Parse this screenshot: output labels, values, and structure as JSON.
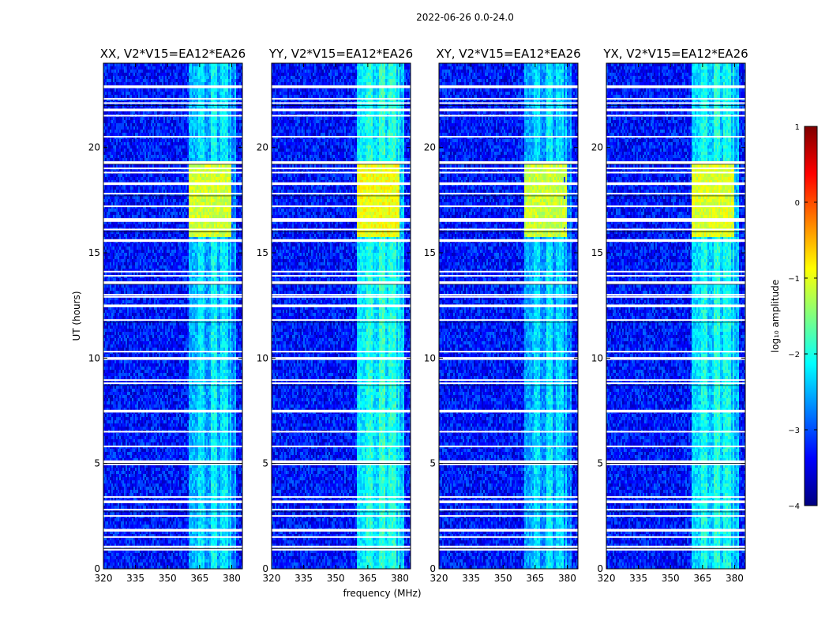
{
  "suptitle": "2022-06-26 0.0-24.0",
  "ylabel": "UT (hours)",
  "xlabel": "frequency (MHz)",
  "colorbar": {
    "label": "log₁₀ amplitude",
    "range": [
      -4,
      1
    ],
    "ticks": [
      {
        "value": 1,
        "label": "1"
      },
      {
        "value": 0,
        "label": "0"
      },
      {
        "value": -1,
        "label": "−1"
      },
      {
        "value": -2,
        "label": "−2"
      },
      {
        "value": -3,
        "label": "−3"
      },
      {
        "value": -4,
        "label": "−4"
      }
    ],
    "colormap": "jet"
  },
  "chart_data": {
    "type": "heatmap",
    "colormap": "jet",
    "value_label": "log10 amplitude",
    "vmin": -4,
    "vmax": 1,
    "xlim": [
      320,
      385
    ],
    "ylim": [
      0,
      24
    ],
    "x_ticks": [
      {
        "value": 320,
        "label": "320"
      },
      {
        "value": 335,
        "label": "335"
      },
      {
        "value": 350,
        "label": "350"
      },
      {
        "value": 365,
        "label": "365"
      },
      {
        "value": 380,
        "label": "380"
      }
    ],
    "y_ticks": [
      {
        "value": 0,
        "label": "0"
      },
      {
        "value": 5,
        "label": "5"
      },
      {
        "value": 10,
        "label": "10"
      },
      {
        "value": 15,
        "label": "15"
      },
      {
        "value": 20,
        "label": "20"
      }
    ],
    "background_level": -3.3,
    "rfi_bands": [
      {
        "start": 360,
        "end": 364,
        "level": -2.5
      },
      {
        "start": 364,
        "end": 367,
        "level": -2.2
      },
      {
        "start": 367,
        "end": 370,
        "level": -2.6
      },
      {
        "start": 370,
        "end": 373,
        "level": -2.1
      },
      {
        "start": 373,
        "end": 375,
        "level": -2.6
      },
      {
        "start": 375,
        "end": 378,
        "level": -2.2
      },
      {
        "start": 378,
        "end": 379,
        "level": -2.7
      },
      {
        "start": 379,
        "end": 380,
        "level": -2.3
      },
      {
        "start": 380,
        "end": 381,
        "level": -2.8
      },
      {
        "start": 381,
        "end": 382,
        "level": -2.5
      }
    ],
    "bright_interval": {
      "start": 15.7,
      "end": 19.3,
      "level": -1.1,
      "freq_range": [
        360,
        380
      ]
    },
    "flagged_times": [
      0.95,
      1.05,
      1.5,
      1.85,
      2.5,
      2.8,
      3.2,
      3.4,
      4.95,
      5.1,
      5.8,
      6.5,
      7.5,
      8.8,
      8.95,
      10.0,
      10.3,
      11.8,
      12.5,
      12.9,
      13.0,
      13.6,
      13.9,
      14.1,
      15.6,
      16.1,
      16.5,
      16.6,
      17.2,
      17.8,
      18.3,
      18.8,
      19.0,
      19.3,
      20.5,
      21.5,
      21.8,
      22.1,
      22.3,
      22.9
    ],
    "panels": [
      {
        "title": "XX, V2*V15=EA12*EA26",
        "band_gain": 1.0,
        "burst_gain": 1.0
      },
      {
        "title": "YY, V2*V15=EA12*EA26",
        "band_gain": 1.12,
        "burst_gain": 1.15
      },
      {
        "title": "XY, V2*V15=EA12*EA26",
        "band_gain": 0.97,
        "burst_gain": 0.95
      },
      {
        "title": "YX, V2*V15=EA12*EA26",
        "band_gain": 1.08,
        "burst_gain": 1.05
      }
    ]
  }
}
